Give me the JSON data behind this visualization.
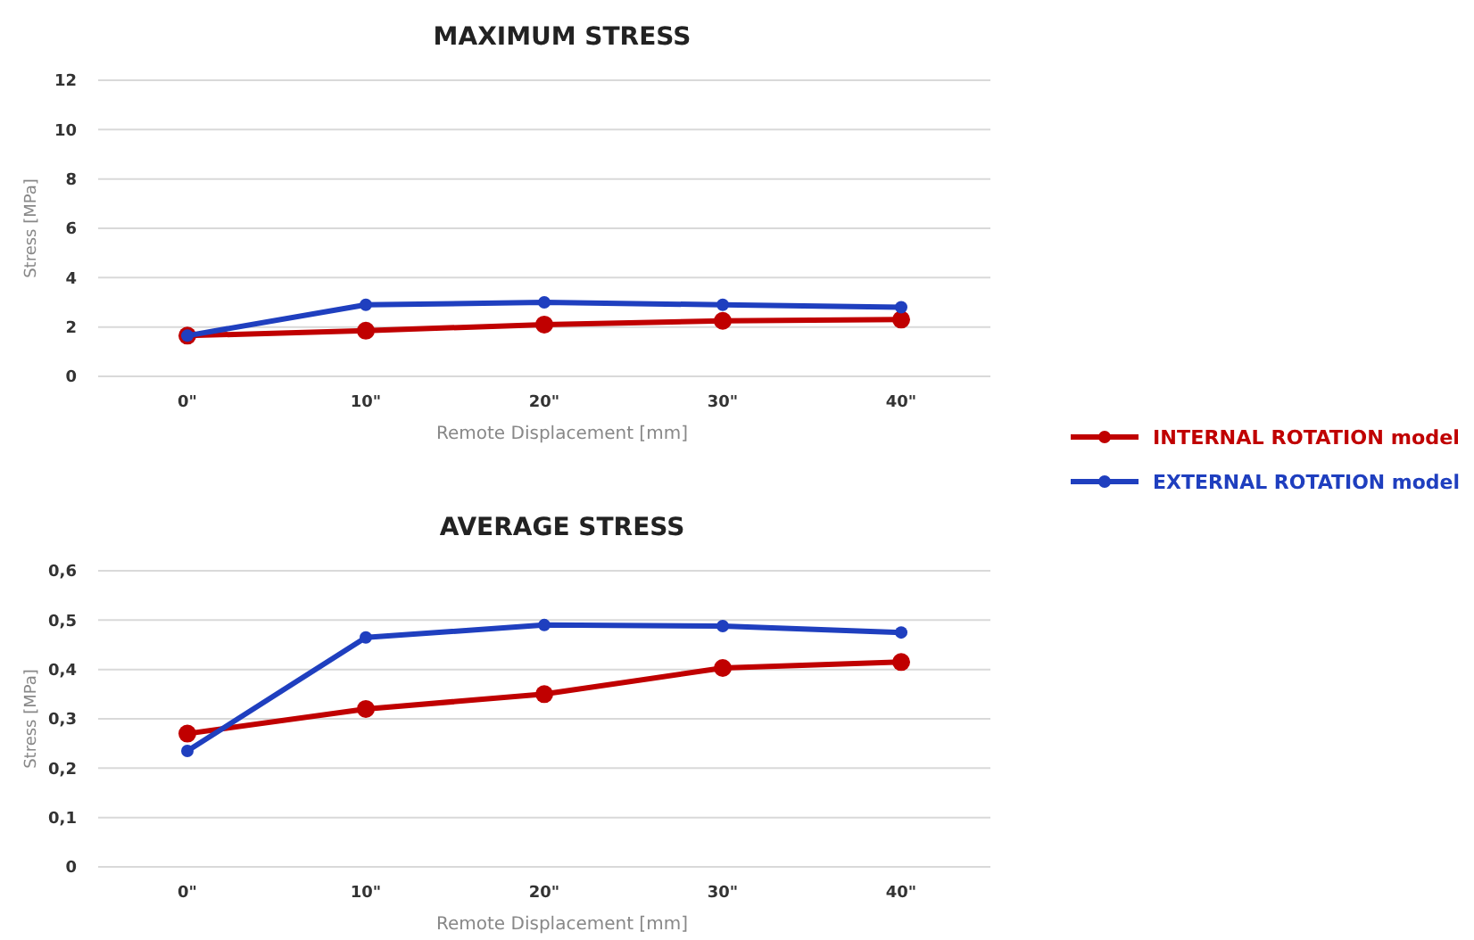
{
  "chart_data": [
    {
      "type": "line",
      "title": "MAXIMUM STRESS",
      "xlabel": "Remote Displacement [mm]",
      "ylabel": "Stress [MPa]",
      "categories": [
        "0\"",
        "10\"",
        "20\"",
        "30\"",
        "40\""
      ],
      "series": [
        {
          "name": "INTERNAL ROTATION model",
          "color": "#c00000",
          "values": [
            1.65,
            1.85,
            2.1,
            2.25,
            2.3
          ]
        },
        {
          "name": "EXTERNAL ROTATION model",
          "color": "#1f3fbf",
          "values": [
            1.65,
            2.9,
            3.0,
            2.9,
            2.8
          ]
        }
      ],
      "ylim": [
        0,
        12
      ],
      "yticks": [
        0,
        2,
        4,
        6,
        8,
        10,
        12
      ],
      "grid": "y",
      "legend": "right",
      "marker": "circle"
    },
    {
      "type": "line",
      "title": "AVERAGE STRESS",
      "xlabel": "Remote Displacement [mm]",
      "ylabel": "Stress [MPa]",
      "categories": [
        "0\"",
        "10\"",
        "20\"",
        "30\"",
        "40\""
      ],
      "series": [
        {
          "color": "#c00000",
          "values": [
            0.27,
            0.32,
            0.35,
            0.403,
            0.415
          ]
        },
        {
          "color": "#1f3fbf",
          "values": [
            0.235,
            0.465,
            0.49,
            0.488,
            0.475
          ]
        }
      ],
      "ylim": [
        0,
        0.6
      ],
      "yticks": [
        0,
        {
          "value": 0.1,
          "label": "0,1"
        },
        {
          "value": 0.2,
          "label": "0,2"
        },
        {
          "value": 0.3,
          "label": "0,3"
        },
        {
          "value": 0.4,
          "label": "0,4"
        },
        {
          "value": 0.5,
          "label": "0,5"
        },
        {
          "value": 0.6,
          "label": "0,6"
        }
      ],
      "grid": "y",
      "marker": "circle"
    }
  ]
}
